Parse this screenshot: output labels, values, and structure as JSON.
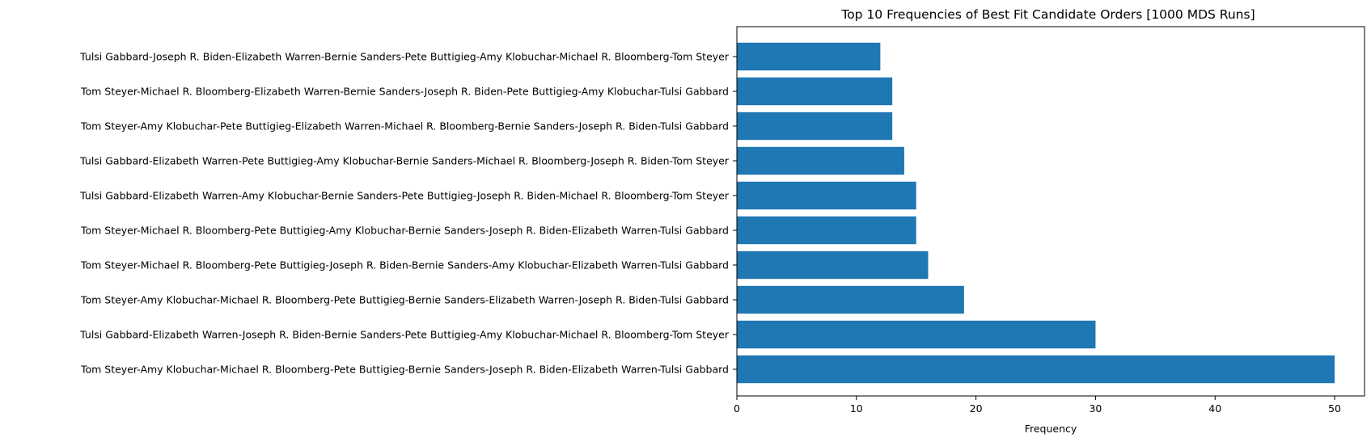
{
  "chart_data": {
    "type": "bar",
    "orientation": "horizontal",
    "title": "Top 10 Frequencies of Best Fit Candidate Orders [1000 MDS Runs]",
    "xlabel": "Frequency",
    "ylabel": "",
    "xlim": [
      0,
      52.5
    ],
    "xticks": [
      0,
      10,
      20,
      30,
      40,
      50
    ],
    "grid": false,
    "bar_color": "#1f77b4",
    "categories": [
      "Tom Steyer-Amy Klobuchar-Michael R. Bloomberg-Pete Buttigieg-Bernie Sanders-Joseph R. Biden-Elizabeth Warren-Tulsi Gabbard",
      "Tulsi Gabbard-Elizabeth Warren-Joseph R. Biden-Bernie Sanders-Pete Buttigieg-Amy Klobuchar-Michael R. Bloomberg-Tom Steyer",
      "Tom Steyer-Amy Klobuchar-Michael R. Bloomberg-Pete Buttigieg-Bernie Sanders-Elizabeth Warren-Joseph R. Biden-Tulsi Gabbard",
      "Tom Steyer-Michael R. Bloomberg-Pete Buttigieg-Joseph R. Biden-Bernie Sanders-Amy Klobuchar-Elizabeth Warren-Tulsi Gabbard",
      "Tom Steyer-Michael R. Bloomberg-Pete Buttigieg-Amy Klobuchar-Bernie Sanders-Joseph R. Biden-Elizabeth Warren-Tulsi Gabbard",
      "Tulsi Gabbard-Elizabeth Warren-Amy Klobuchar-Bernie Sanders-Pete Buttigieg-Joseph R. Biden-Michael R. Bloomberg-Tom Steyer",
      "Tulsi Gabbard-Elizabeth Warren-Pete Buttigieg-Amy Klobuchar-Bernie Sanders-Michael R. Bloomberg-Joseph R. Biden-Tom Steyer",
      "Tom Steyer-Amy Klobuchar-Pete Buttigieg-Elizabeth Warren-Michael R. Bloomberg-Bernie Sanders-Joseph R. Biden-Tulsi Gabbard",
      "Tom Steyer-Michael R. Bloomberg-Elizabeth Warren-Bernie Sanders-Joseph R. Biden-Pete Buttigieg-Amy Klobuchar-Tulsi Gabbard",
      "Tulsi Gabbard-Joseph R. Biden-Elizabeth Warren-Bernie Sanders-Pete Buttigieg-Amy Klobuchar-Michael R. Bloomberg-Tom Steyer"
    ],
    "values": [
      50,
      30,
      19,
      16,
      15,
      15,
      14,
      13,
      13,
      12
    ]
  }
}
